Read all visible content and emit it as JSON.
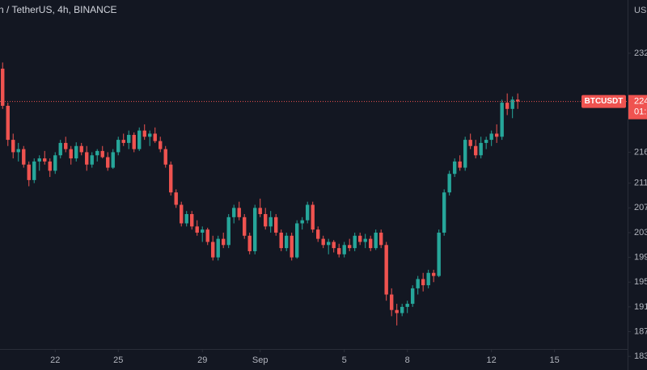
{
  "chart_data": {
    "type": "candlestick",
    "title": "n / TetherUS, 4h, BINANCE",
    "currency": "USD",
    "symbol": "BTCUSDT",
    "last_price_label": "224",
    "countdown": "01:",
    "up_color": "#26a69a",
    "down_color": "#ef5350",
    "ylim": [
      18080,
      24060
    ],
    "yticks": [
      {
        "value": 23200,
        "label": "232"
      },
      {
        "value": 21600,
        "label": "216"
      },
      {
        "value": 21100,
        "label": "211"
      },
      {
        "value": 20700,
        "label": "207"
      },
      {
        "value": 20300,
        "label": "203"
      },
      {
        "value": 19900,
        "label": "199"
      },
      {
        "value": 19500,
        "label": "195"
      },
      {
        "value": 19100,
        "label": "191"
      },
      {
        "value": 18700,
        "label": "187"
      },
      {
        "value": 18300,
        "label": "183"
      }
    ],
    "xlim": [
      0,
      119.4
    ],
    "xticks": [
      {
        "value": 10.5,
        "label": "22"
      },
      {
        "value": 22.5,
        "label": "25"
      },
      {
        "value": 38.5,
        "label": "29"
      },
      {
        "value": 49.5,
        "label": "Sep"
      },
      {
        "value": 65.5,
        "label": "5"
      },
      {
        "value": 77.5,
        "label": "8"
      },
      {
        "value": 93.5,
        "label": "12"
      },
      {
        "value": 105.5,
        "label": "15"
      }
    ],
    "candles": [
      [
        22950,
        23050,
        22300,
        22350
      ],
      [
        22350,
        22400,
        21700,
        21800
      ],
      [
        21800,
        21900,
        21500,
        21600
      ],
      [
        21600,
        21750,
        21450,
        21650
      ],
      [
        21650,
        21700,
        21350,
        21400
      ],
      [
        21400,
        21450,
        21050,
        21150
      ],
      [
        21150,
        21500,
        21100,
        21450
      ],
      [
        21450,
        21550,
        21300,
        21500
      ],
      [
        21500,
        21620,
        21400,
        21450
      ],
      [
        21450,
        21500,
        21200,
        21300
      ],
      [
        21300,
        21600,
        21250,
        21550
      ],
      [
        21550,
        21800,
        21500,
        21750
      ],
      [
        21750,
        21850,
        21600,
        21650
      ],
      [
        21650,
        21700,
        21400,
        21500
      ],
      [
        21500,
        21760,
        21450,
        21700
      ],
      [
        21700,
        21750,
        21550,
        21600
      ],
      [
        21600,
        21700,
        21300,
        21400
      ],
      [
        21400,
        21600,
        21350,
        21550
      ],
      [
        21550,
        21650,
        21450,
        21620
      ],
      [
        21620,
        21700,
        21500,
        21520
      ],
      [
        21520,
        21600,
        21300,
        21350
      ],
      [
        21350,
        21650,
        21330,
        21600
      ],
      [
        21600,
        21850,
        21550,
        21800
      ],
      [
        21800,
        21900,
        21700,
        21750
      ],
      [
        21750,
        21950,
        21650,
        21880
      ],
      [
        21880,
        21920,
        21600,
        21650
      ],
      [
        21650,
        22000,
        21620,
        21950
      ],
      [
        21950,
        22050,
        21800,
        21850
      ],
      [
        21850,
        21950,
        21700,
        21900
      ],
      [
        21900,
        22000,
        21750,
        21780
      ],
      [
        21780,
        21850,
        21600,
        21650
      ],
      [
        21650,
        21700,
        21350,
        21400
      ],
      [
        21400,
        21450,
        20900,
        20950
      ],
      [
        20950,
        21000,
        20700,
        20750
      ],
      [
        20750,
        20800,
        20400,
        20450
      ],
      [
        20450,
        20650,
        20400,
        20600
      ],
      [
        20600,
        20650,
        20350,
        20400
      ],
      [
        20400,
        20500,
        20250,
        20300
      ],
      [
        20300,
        20400,
        20150,
        20350
      ],
      [
        20350,
        20380,
        20100,
        20150
      ],
      [
        20150,
        20250,
        19850,
        19900
      ],
      [
        19900,
        20250,
        19850,
        20200
      ],
      [
        20200,
        20300,
        20050,
        20100
      ],
      [
        20100,
        20600,
        20050,
        20550
      ],
      [
        20550,
        20750,
        20450,
        20700
      ],
      [
        20700,
        20800,
        20500,
        20550
      ],
      [
        20550,
        20600,
        20200,
        20250
      ],
      [
        20250,
        20300,
        19950,
        20000
      ],
      [
        20000,
        20750,
        19950,
        20700
      ],
      [
        20700,
        20850,
        20550,
        20600
      ],
      [
        20600,
        20700,
        20350,
        20400
      ],
      [
        20400,
        20650,
        20300,
        20550
      ],
      [
        20550,
        20600,
        20250,
        20300
      ],
      [
        20300,
        20350,
        20000,
        20050
      ],
      [
        20050,
        20300,
        20000,
        20250
      ],
      [
        20250,
        20300,
        19850,
        19900
      ],
      [
        19900,
        20500,
        19880,
        20450
      ],
      [
        20450,
        20550,
        20350,
        20500
      ],
      [
        20500,
        20800,
        20450,
        20750
      ],
      [
        20750,
        20800,
        20300,
        20350
      ],
      [
        20350,
        20400,
        20150,
        20200
      ],
      [
        20200,
        20250,
        20050,
        20100
      ],
      [
        20100,
        20200,
        19950,
        20150
      ],
      [
        20150,
        20180,
        19980,
        20050
      ],
      [
        20050,
        20120,
        19900,
        19950
      ],
      [
        19950,
        20150,
        19900,
        20100
      ],
      [
        20100,
        20200,
        20000,
        20050
      ],
      [
        20050,
        20300,
        20000,
        20250
      ],
      [
        20250,
        20300,
        20100,
        20150
      ],
      [
        20150,
        20280,
        20050,
        20200
      ],
      [
        20200,
        20250,
        20000,
        20050
      ],
      [
        20050,
        20350,
        20020,
        20300
      ],
      [
        20300,
        20350,
        20050,
        20100
      ],
      [
        20100,
        20150,
        19200,
        19300
      ],
      [
        19300,
        19400,
        18950,
        19050
      ],
      [
        19050,
        19150,
        18800,
        19000
      ],
      [
        19000,
        19150,
        18950,
        19100
      ],
      [
        19100,
        19200,
        19000,
        19150
      ],
      [
        19150,
        19450,
        19100,
        19400
      ],
      [
        19400,
        19600,
        19300,
        19550
      ],
      [
        19550,
        19650,
        19350,
        19450
      ],
      [
        19450,
        19700,
        19400,
        19650
      ],
      [
        19650,
        19700,
        19500,
        19600
      ],
      [
        19600,
        20350,
        19580,
        20300
      ],
      [
        20300,
        21000,
        20250,
        20950
      ],
      [
        20950,
        21300,
        20900,
        21250
      ],
      [
        21250,
        21500,
        21200,
        21450
      ],
      [
        21450,
        21550,
        21300,
        21350
      ],
      [
        21350,
        21850,
        21300,
        21800
      ],
      [
        21800,
        21900,
        21650,
        21700
      ],
      [
        21700,
        21800,
        21500,
        21550
      ],
      [
        21550,
        21850,
        21500,
        21750
      ],
      [
        21750,
        21850,
        21650,
        21800
      ],
      [
        21800,
        21950,
        21700,
        21900
      ],
      [
        21900,
        22050,
        21750,
        21850
      ],
      [
        21850,
        22450,
        21800,
        22400
      ],
      [
        22400,
        22550,
        22200,
        22300
      ],
      [
        22300,
        22500,
        22150,
        22450
      ],
      [
        22450,
        22550,
        22300,
        22420
      ]
    ]
  }
}
